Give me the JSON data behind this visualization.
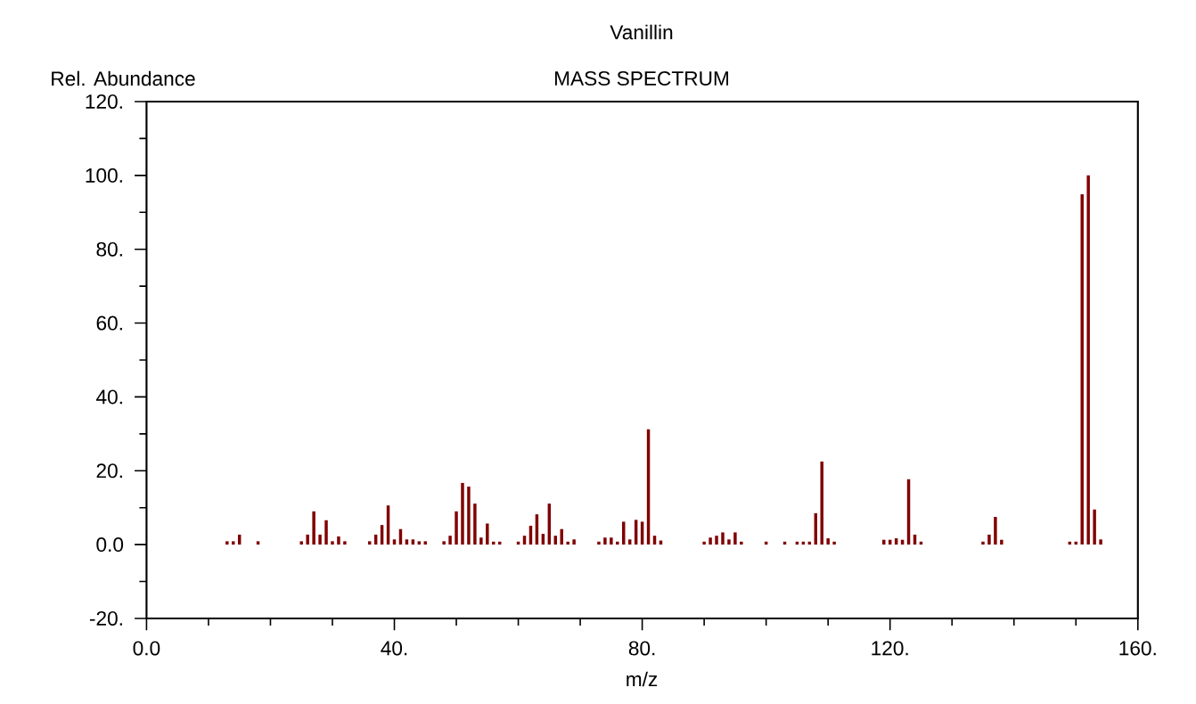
{
  "chart_data": {
    "type": "bar",
    "title": "Vanillin",
    "subtitle": "MASS SPECTRUM",
    "xlabel": "m/z",
    "ylabel": "Rel. Abundance",
    "color": "#800000",
    "x": [
      13,
      14,
      15,
      18,
      25,
      26,
      27,
      28,
      29,
      30,
      31,
      32,
      36,
      37,
      38,
      39,
      40,
      41,
      42,
      43,
      44,
      45,
      48,
      49,
      50,
      51,
      52,
      53,
      54,
      55,
      56,
      57,
      60,
      61,
      62,
      63,
      64,
      65,
      66,
      67,
      68,
      69,
      73,
      74,
      75,
      76,
      77,
      78,
      79,
      80,
      81,
      82,
      83,
      90,
      91,
      92,
      93,
      94,
      95,
      96,
      100,
      103,
      105,
      106,
      107,
      108,
      109,
      110,
      111,
      119,
      120,
      121,
      122,
      123,
      124,
      125,
      135,
      136,
      137,
      138,
      149,
      150,
      151,
      152,
      153,
      154
    ],
    "values": [
      0.9,
      0.9,
      2.7,
      0.9,
      0.9,
      2.7,
      9.0,
      2.7,
      6.6,
      0.9,
      2.2,
      0.9,
      0.9,
      2.7,
      5.3,
      10.6,
      1.4,
      4.2,
      1.4,
      1.4,
      0.9,
      0.9,
      0.9,
      2.4,
      9.0,
      16.7,
      15.7,
      11.1,
      1.9,
      5.7,
      0.8,
      0.8,
      0.8,
      2.4,
      5.1,
      8.2,
      2.9,
      11.1,
      2.4,
      4.2,
      0.8,
      1.4,
      0.8,
      1.9,
      1.9,
      0.8,
      6.2,
      1.4,
      6.7,
      6.2,
      31.2,
      2.4,
      1.1,
      0.8,
      1.9,
      2.4,
      3.3,
      1.4,
      3.3,
      0.8,
      0.8,
      0.8,
      0.8,
      0.8,
      0.8,
      8.5,
      22.5,
      1.7,
      0.8,
      1.3,
      1.3,
      1.7,
      1.3,
      17.7,
      2.7,
      0.8,
      0.8,
      2.7,
      7.5,
      1.3,
      0.8,
      0.8,
      94.9,
      100,
      9.5,
      1.4
    ],
    "xlim": [
      0,
      160
    ],
    "ylim": [
      -20,
      120
    ],
    "xticks": [
      {
        "value": 0,
        "label": "0.0"
      },
      {
        "value": 10,
        "label": null
      },
      {
        "value": 20,
        "label": null
      },
      {
        "value": 30,
        "label": null
      },
      {
        "value": 40,
        "label": "40."
      },
      {
        "value": 50,
        "label": null
      },
      {
        "value": 60,
        "label": null
      },
      {
        "value": 70,
        "label": null
      },
      {
        "value": 80,
        "label": "80."
      },
      {
        "value": 90,
        "label": null
      },
      {
        "value": 100,
        "label": null
      },
      {
        "value": 110,
        "label": null
      },
      {
        "value": 120,
        "label": "120."
      },
      {
        "value": 130,
        "label": null
      },
      {
        "value": 140,
        "label": null
      },
      {
        "value": 150,
        "label": null
      },
      {
        "value": 160,
        "label": "160."
      }
    ],
    "yticks": [
      {
        "value": -20,
        "label": "-20."
      },
      {
        "value": -10,
        "label": null
      },
      {
        "value": 0,
        "label": "0.0"
      },
      {
        "value": 10,
        "label": null
      },
      {
        "value": 20,
        "label": "20."
      },
      {
        "value": 30,
        "label": null
      },
      {
        "value": 40,
        "label": "40."
      },
      {
        "value": 50,
        "label": null
      },
      {
        "value": 60,
        "label": "60."
      },
      {
        "value": 70,
        "label": null
      },
      {
        "value": 80,
        "label": "80."
      },
      {
        "value": 90,
        "label": null
      },
      {
        "value": 100,
        "label": "100."
      },
      {
        "value": 110,
        "label": null
      },
      {
        "value": 120,
        "label": "120."
      }
    ]
  }
}
